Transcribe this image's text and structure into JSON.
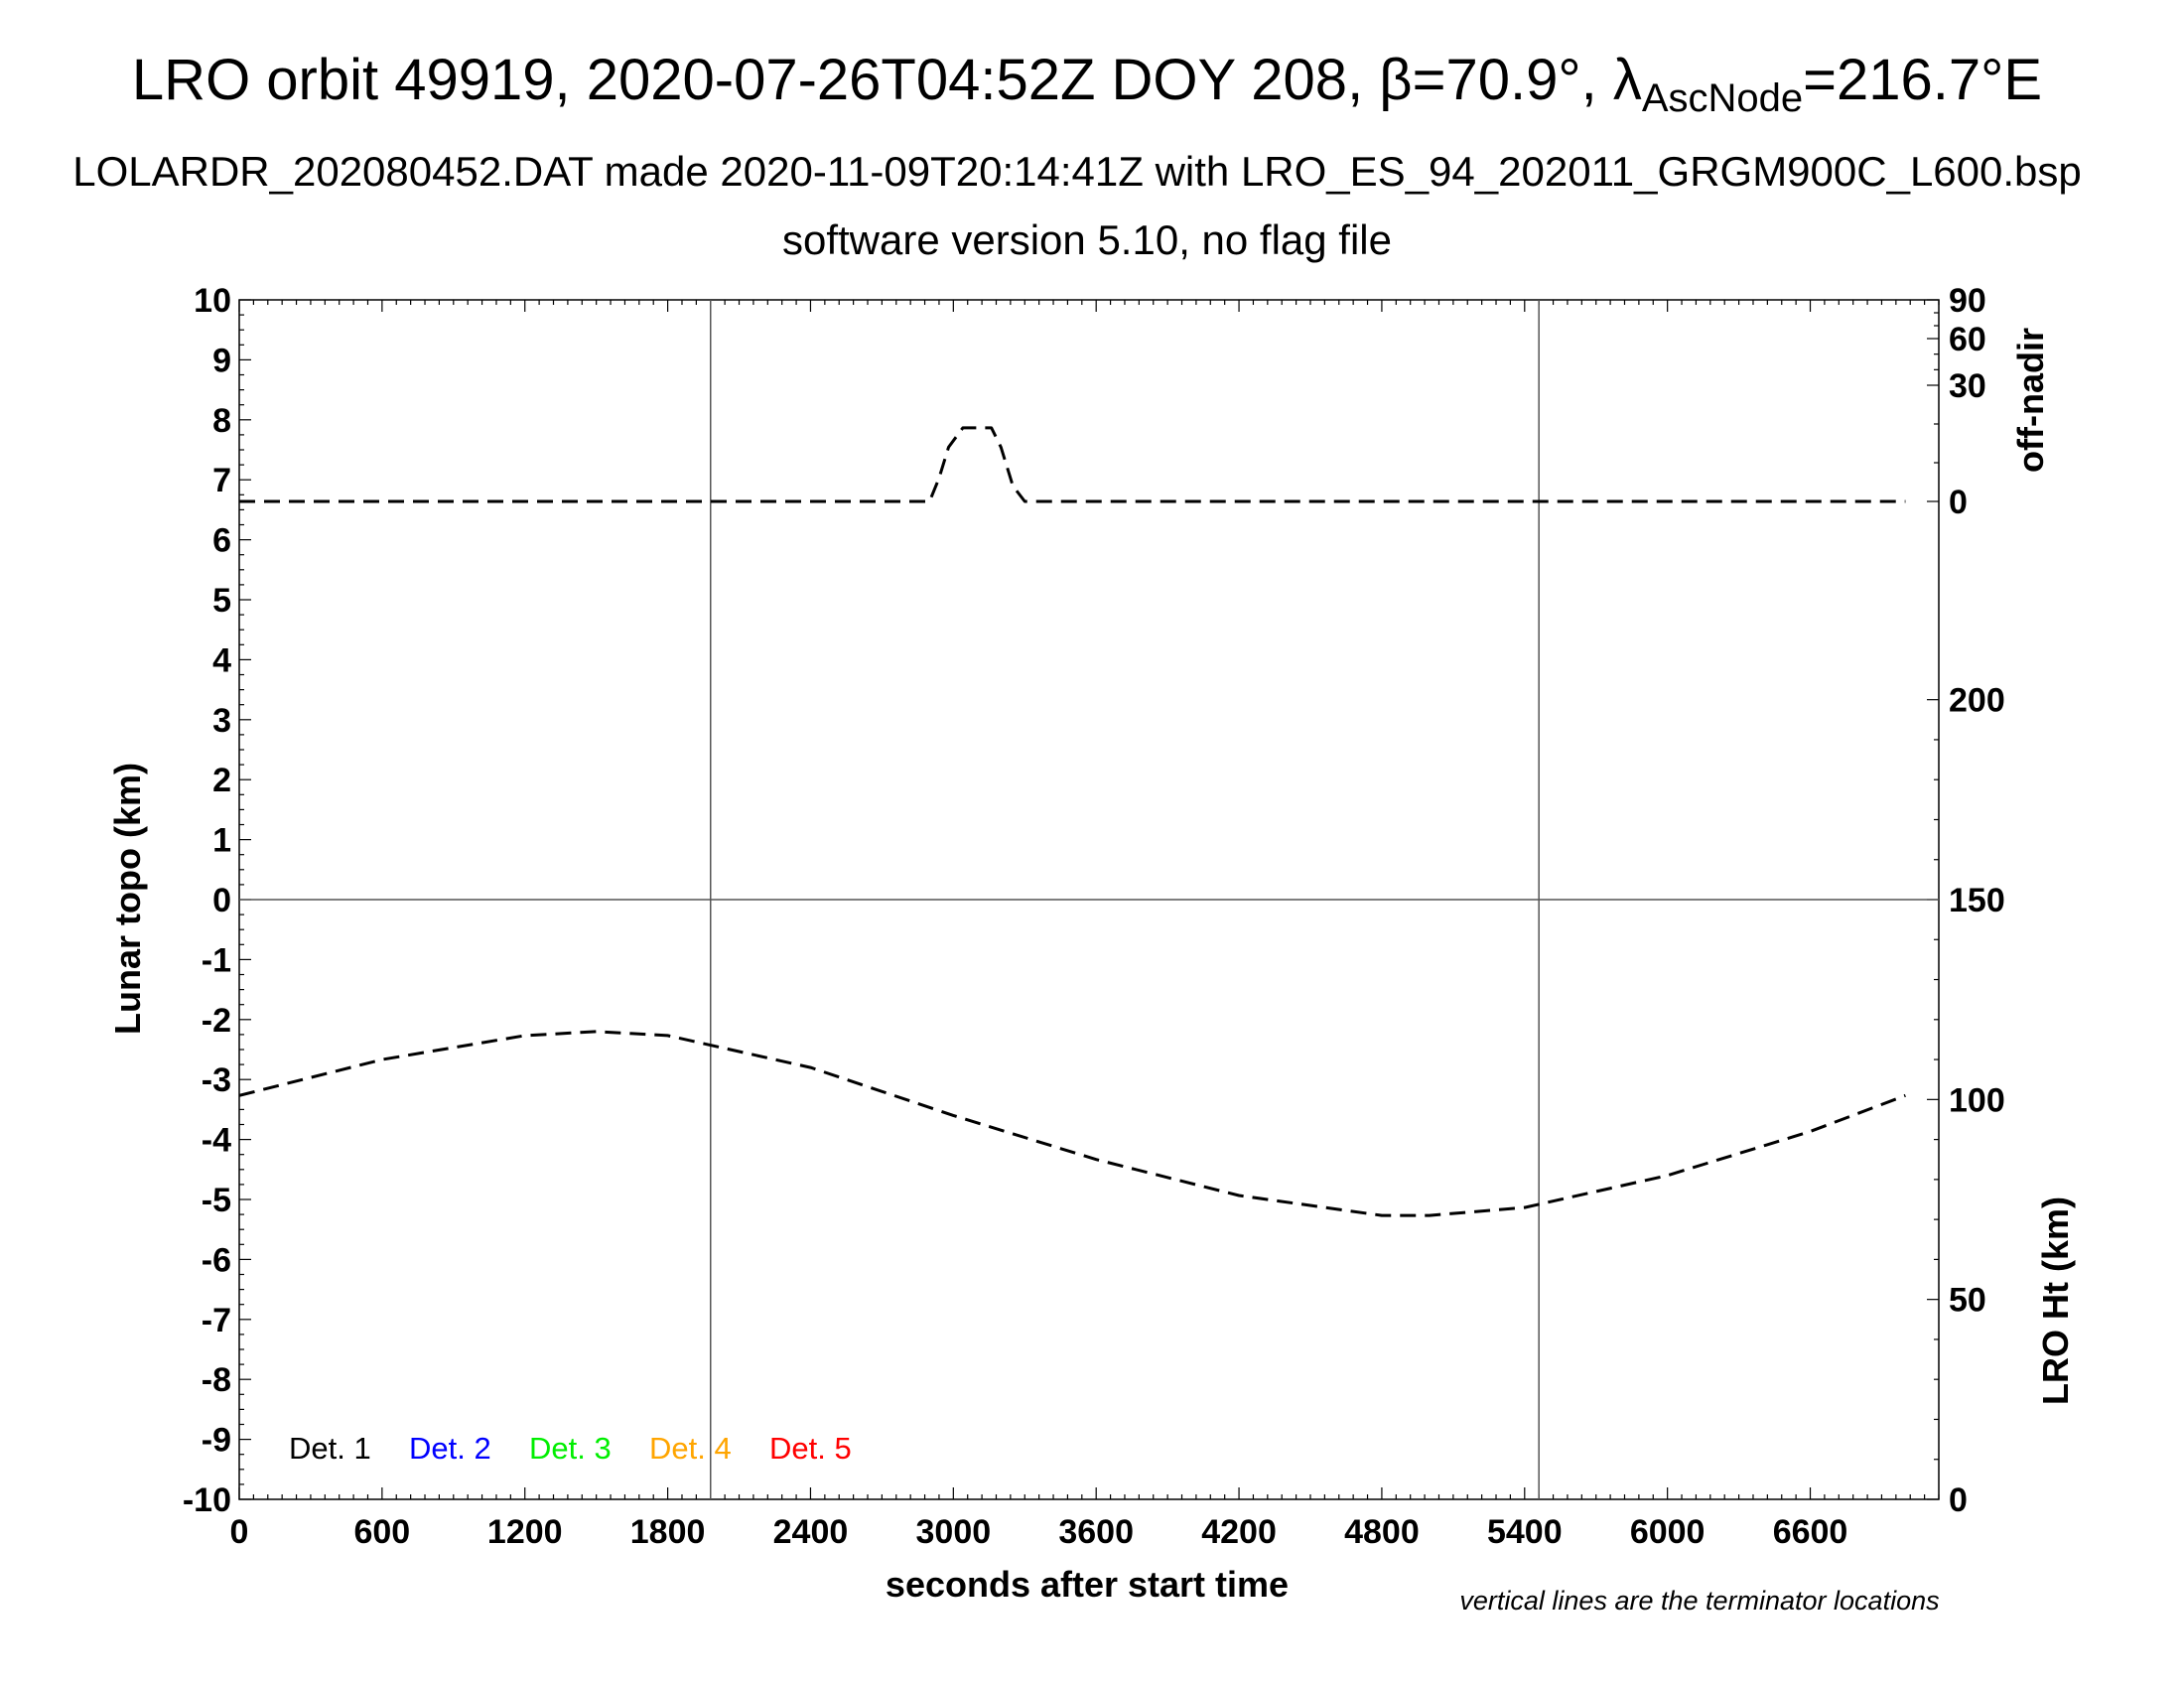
{
  "title": {
    "pre": "LRO orbit 49919, 2020-07-26T04:52Z DOY 208, ",
    "beta": "β=70.9°, ",
    "lambda": "λ",
    "lambda_sub": "AscNode",
    "post": "=216.7°E"
  },
  "subtitle1": "LOLARDR_202080452.DAT made 2020-11-09T20:14:41Z with LRO_ES_94_202011_GRGM900C_L600.bsp",
  "subtitle2": "software version 5.10, no flag file",
  "note": "vertical lines are the terminator locations",
  "chart_data": {
    "type": "line",
    "xlabel": "seconds after start time",
    "xlim": [
      0,
      7140
    ],
    "xticks": [
      0,
      600,
      1200,
      1800,
      2400,
      3000,
      3600,
      4200,
      4800,
      5400,
      6000,
      6600
    ],
    "ylabel_left": "Lunar topo (km)",
    "ylim_left": [
      -10,
      10
    ],
    "yticks_left": [
      10,
      9,
      8,
      7,
      6,
      5,
      4,
      3,
      2,
      1,
      0,
      -1,
      -2,
      -3,
      -4,
      -5,
      -6,
      -7,
      -8,
      -9,
      -10
    ],
    "ylabel_right_top": "off-nadir",
    "yticks_right_top": [
      90,
      60,
      30,
      0
    ],
    "ylabel_right_bottom": "LRO Ht (km)",
    "ylim_right_bottom": [
      0,
      300
    ],
    "yticks_right_bottom": [
      200,
      150,
      100,
      50,
      0
    ],
    "terminators": [
      1980,
      5460
    ],
    "grid": "zero line and terminator lines only",
    "legend": {
      "placement": "bottom-left",
      "entries": [
        {
          "label": "Det. 1",
          "color": "#000000"
        },
        {
          "label": "Det. 2",
          "color": "#0000ff"
        },
        {
          "label": "Det. 3",
          "color": "#00ee00"
        },
        {
          "label": "Det. 4",
          "color": "#ffa500"
        },
        {
          "label": "Det. 5",
          "color": "#ff0000"
        }
      ]
    },
    "series": [
      {
        "name": "off-nadir",
        "axis": "right-top",
        "style": "dashed",
        "x": [
          0,
          1000,
          2000,
          2900,
          2940,
          2980,
          3040,
          3100,
          3160,
          3200,
          3250,
          3300,
          4000,
          5000,
          6000,
          7000
        ],
        "y": [
          0,
          0,
          0,
          0,
          6,
          14,
          19,
          19,
          19,
          14,
          4,
          0,
          0,
          0,
          0,
          0
        ]
      },
      {
        "name": "LRO Ht",
        "axis": "right-bottom",
        "style": "dashed",
        "x": [
          0,
          600,
          1200,
          1500,
          1800,
          2400,
          3000,
          3600,
          4200,
          4800,
          5000,
          5400,
          6000,
          6600,
          7000
        ],
        "y": [
          101,
          110,
          116,
          117,
          116,
          108,
          96,
          85,
          76,
          71,
          71,
          73,
          81,
          92,
          101
        ]
      }
    ]
  }
}
